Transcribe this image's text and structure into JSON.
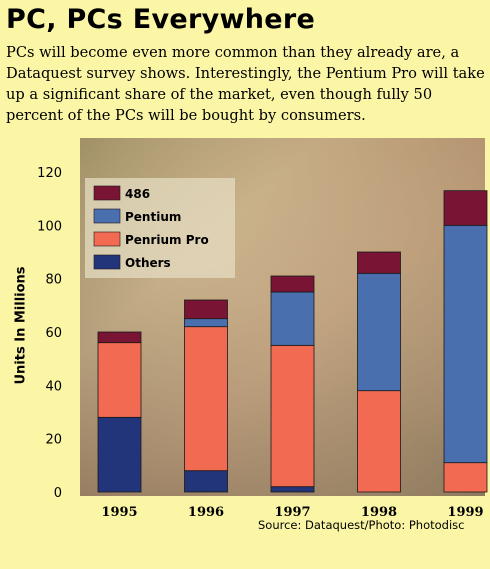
{
  "title": "PC, PCs Everywhere",
  "subtitle": "PCs will become even more common than they already are, a Dataquest survey shows. Interestingly, the Pentium Pro will take up a significant share of the market, even though fully 50 percent of the PCs will be bought by consumers.",
  "source": "Source: Dataquest/Photo: Photodisc",
  "chart_data": {
    "type": "bar",
    "stacked": true,
    "categories": [
      "1995",
      "1996",
      "1997",
      "1998",
      "1999"
    ],
    "series": [
      {
        "name": "Others",
        "color": "#23357a",
        "values": [
          28,
          8,
          2,
          0,
          0
        ]
      },
      {
        "name": "Penrium Pro",
        "color": "#f26a52",
        "values": [
          28,
          54,
          53,
          38,
          11
        ]
      },
      {
        "name": "Pentium",
        "color": "#4a6fae",
        "values": [
          0,
          3,
          20,
          44,
          89
        ]
      },
      {
        "name": "486",
        "color": "#7a1434",
        "values": [
          4,
          7,
          6,
          8,
          13
        ]
      }
    ],
    "legend_order": [
      "486",
      "Pentium",
      "Penrium Pro",
      "Others"
    ],
    "legend_placement": "top-left",
    "ylabel": "Units In Millions",
    "xlabel": "",
    "ylim": [
      0,
      120
    ],
    "yticks": [
      0,
      20,
      40,
      60,
      80,
      100,
      120
    ],
    "grid": false
  }
}
